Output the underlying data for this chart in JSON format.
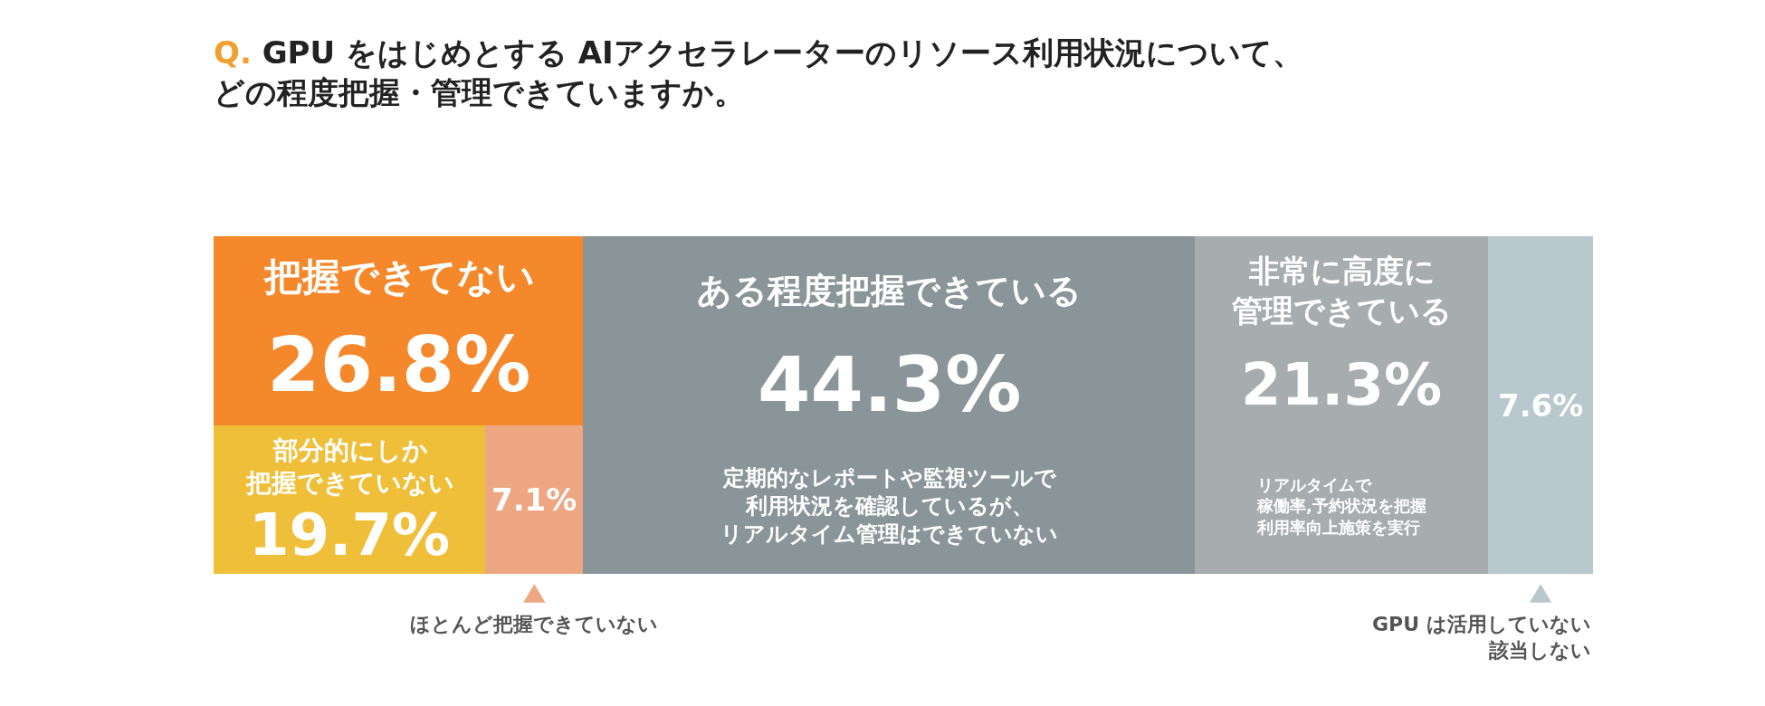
{
  "chart_data": {
    "type": "bar",
    "orientation": "horizontal",
    "stacked": true,
    "title": "Q. GPU をはじめとする AIアクセラレーターのリソース利用状況について、どの程度把握・管理できていますか。",
    "categories": [
      null
    ],
    "legend": "bottom",
    "series": [
      {
        "name": "部分的にしか把握できていない",
        "color": "#f0bf3a",
        "values": [
          19.7
        ],
        "value_labels": [
          "19.7%"
        ]
      },
      {
        "name": "ほとんど把握できていない",
        "color": "#eda883",
        "values": [
          7.1
        ],
        "value_labels": [
          "7.1%"
        ]
      },
      {
        "name": "ある程度把握できている",
        "color": "#8a9599",
        "values": [
          44.3
        ],
        "value_labels": [
          "44.3%"
        ]
      },
      {
        "name": "非常に高度に管理できている",
        "color": "#a7acae",
        "values": [
          21.3
        ],
        "value_labels": [
          "21.3%"
        ]
      },
      {
        "name": "GPU は活用していない該当しない",
        "color": "#b9c8cc",
        "values": [
          7.6
        ],
        "value_labels": [
          "7.6%"
        ]
      }
    ],
    "bands": [
      {
        "axis": "x",
        "from": 0,
        "to": 26.8,
        "label": "把握できてない26.8%",
        "color": "#f5882a"
      }
    ],
    "annotations": [
      "定期的なレポートや監視ツールで利用状況を確認しているが、リアルタイム管理はできていない",
      "リアルタイムで稼働率,予約状況を把握利用率向上施策を実行"
    ]
  }
}
